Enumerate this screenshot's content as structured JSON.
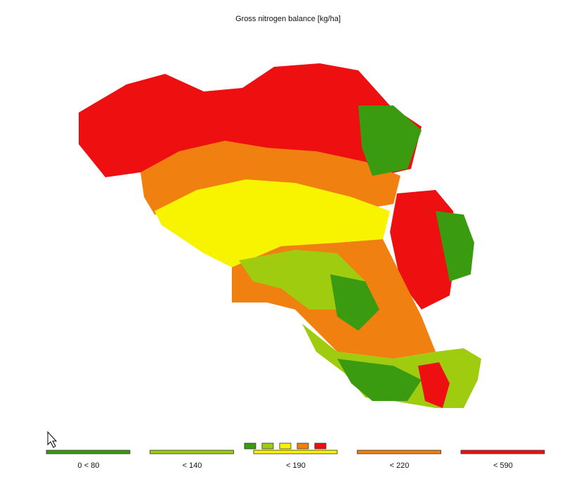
{
  "title": "Gross nitrogen balance [kg/ha]",
  "legend": [
    {
      "label": "0 < 80",
      "color": "#3a9a10"
    },
    {
      "label": "< 140",
      "color": "#a0cc10"
    },
    {
      "label": "< 190",
      "color": "#f8f400"
    },
    {
      "label": "< 220",
      "color": "#f08010"
    },
    {
      "label": "< 590",
      "color": "#ee1010"
    }
  ]
}
